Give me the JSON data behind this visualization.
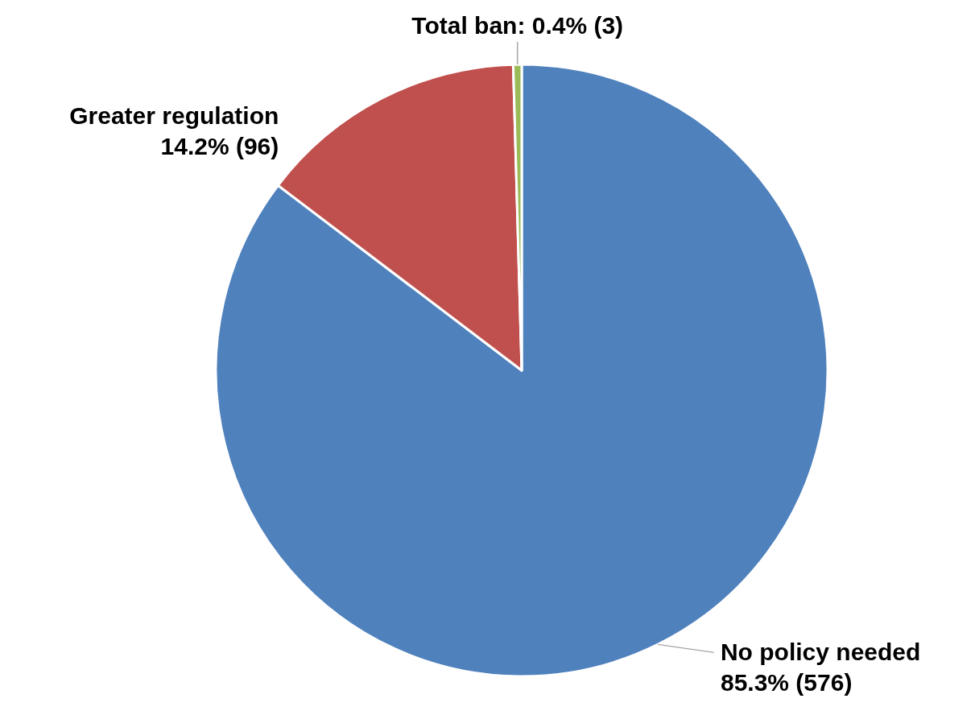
{
  "chart_data": {
    "type": "pie",
    "categories": [
      "No policy needed",
      "Greater regulation",
      "Total ban"
    ],
    "values": [
      576,
      96,
      3
    ],
    "value_labels": [
      "85.3% (576)",
      "14.2% (96)",
      "0.4% (3)"
    ],
    "colors": [
      "#4f81bd",
      "#c0504d",
      "#9bbb59"
    ]
  }
}
